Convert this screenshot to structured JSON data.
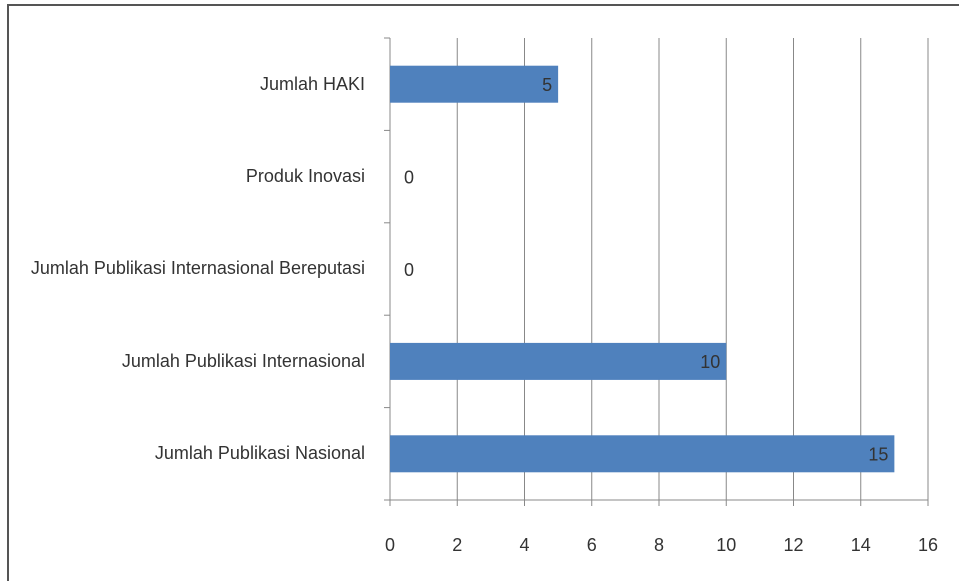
{
  "chart_data": {
    "type": "bar",
    "orientation": "horizontal",
    "categories": [
      "Jumlah HAKI",
      "Produk Inovasi",
      "Jumlah Publikasi Internasional Bereputasi",
      "Jumlah Publikasi Internasional",
      "Jumlah Publikasi Nasional"
    ],
    "values": [
      5,
      0,
      0,
      10,
      15
    ],
    "color": "#4f81bd",
    "xlim": [
      0,
      16
    ],
    "xticks": [
      0,
      2,
      4,
      6,
      8,
      10,
      12,
      14,
      16
    ],
    "grid": true
  }
}
